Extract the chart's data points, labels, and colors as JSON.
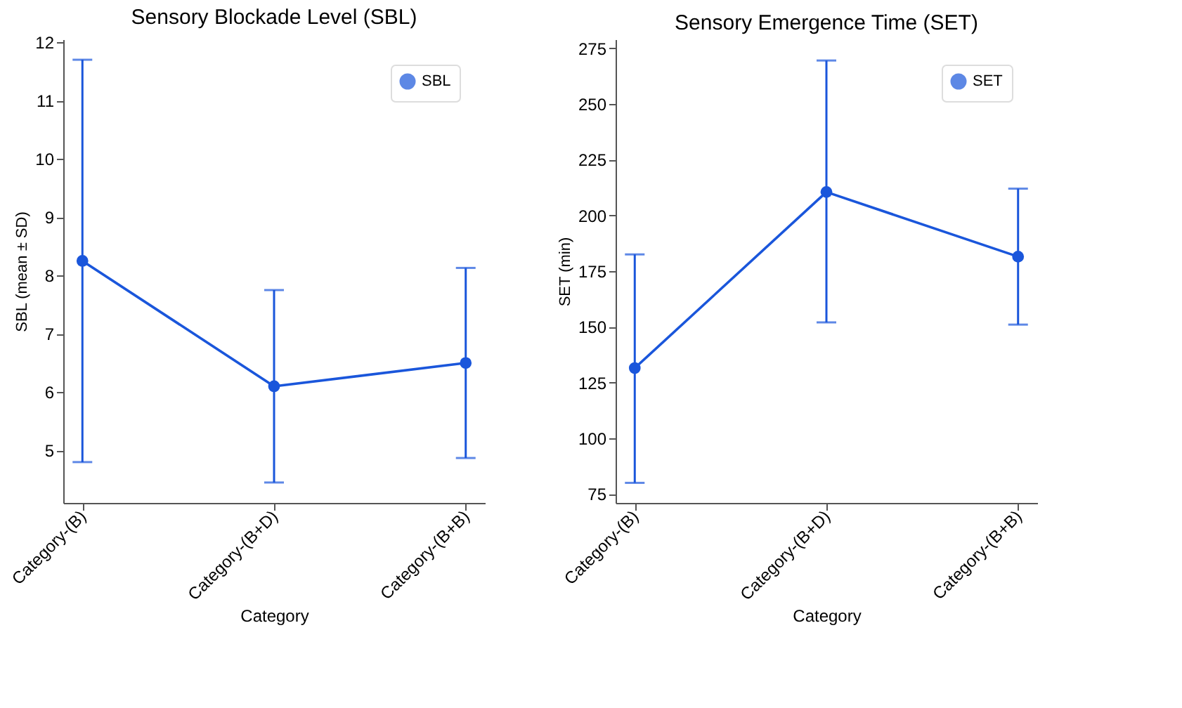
{
  "chart_data": [
    {
      "type": "line",
      "title": "Sensory Blockade Level (SBL)",
      "xlabel": "Category",
      "ylabel": "SBL (mean ± SD)",
      "categories": [
        "Category-(B)",
        "Category-(B+D)",
        "Category-(B+B)"
      ],
      "series": [
        {
          "name": "SBL",
          "color": "#1a56db",
          "values": [
            8.25,
            6.1,
            6.5
          ],
          "errors": [
            [
              4.8,
              11.7
            ],
            [
              4.45,
              7.75
            ],
            [
              4.87,
              8.13
            ]
          ]
        }
      ],
      "ylim": [
        4.1,
        12.05
      ],
      "yticks": [
        5,
        6,
        7,
        8,
        9,
        10,
        11,
        12
      ],
      "grid": false,
      "legend": "top right",
      "marker": "circle",
      "line_style": "solid"
    },
    {
      "type": "line",
      "title": "Sensory Emergence Time (SET)",
      "xlabel": "Category",
      "ylabel": "SET (min)",
      "categories": [
        "Category-(B)",
        "Category-(B+D)",
        "Category-(B+B)"
      ],
      "series": [
        {
          "name": "SET",
          "color": "#1a56db",
          "values": [
            131.5,
            210.5,
            181.5
          ],
          "errors": [
            [
              80,
              182.5
            ],
            [
              152,
              269.5
            ],
            [
              151,
              212
            ]
          ]
        }
      ],
      "ylim": [
        71,
        279
      ],
      "yticks": [
        75,
        100,
        125,
        150,
        175,
        200,
        225,
        250,
        275
      ],
      "grid": false,
      "legend": "top right",
      "marker": "circle",
      "line_style": "solid"
    }
  ]
}
